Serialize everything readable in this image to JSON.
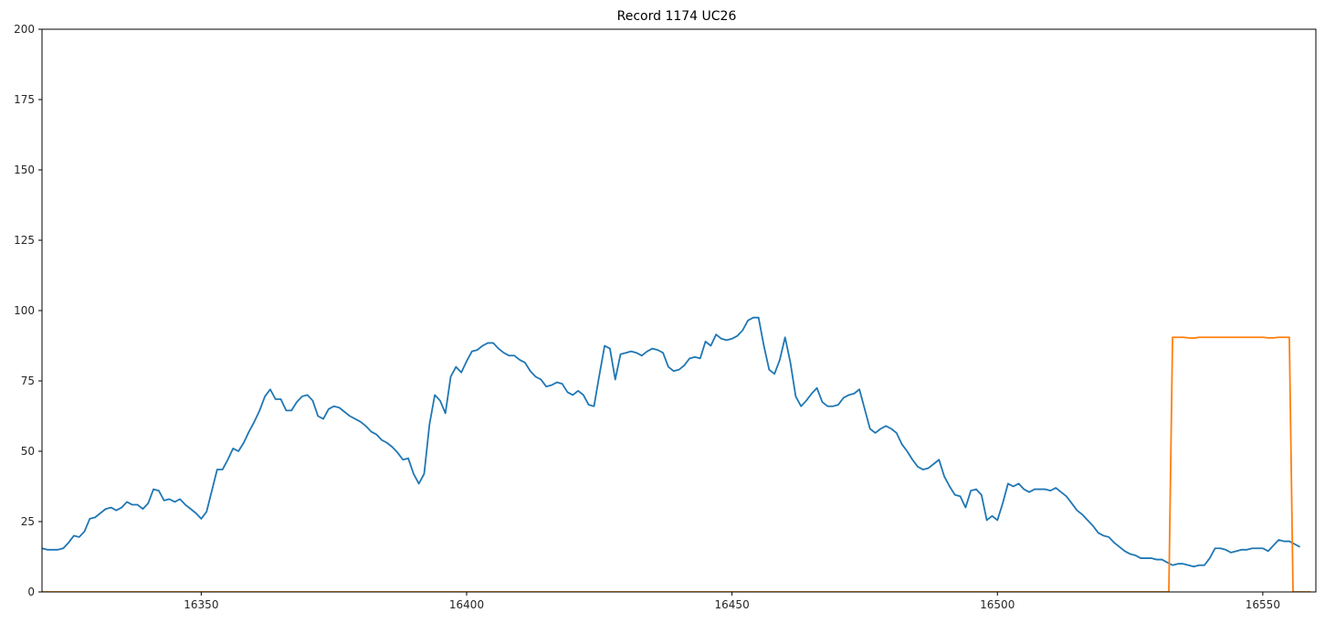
{
  "chart_data": {
    "type": "line",
    "title": "Record 1174 UC26",
    "xlabel": "",
    "ylabel": "",
    "xlim": [
      16320,
      16560
    ],
    "ylim": [
      0,
      200
    ],
    "x_ticks": [
      16350,
      16400,
      16450,
      16500,
      16550
    ],
    "y_ticks": [
      0,
      25,
      50,
      75,
      100,
      125,
      150,
      175,
      200
    ],
    "grid": false,
    "legend": "none",
    "x_start": 16320,
    "series": [
      {
        "color": "#1f77b4",
        "values": [
          15.5,
          15,
          15,
          15,
          15.5,
          17.5,
          20,
          19.5,
          21.5,
          26,
          26.5,
          28,
          29.5,
          30,
          29,
          30,
          32,
          31,
          31,
          29.5,
          31.5,
          36.5,
          36,
          32.5,
          33,
          32,
          33,
          31,
          29.5,
          28,
          26,
          28.5,
          36,
          43.5,
          43.5,
          47,
          51,
          50,
          53,
          57,
          60.5,
          64.5,
          69.5,
          72,
          68.5,
          68.5,
          64.5,
          64.5,
          67.5,
          69.5,
          70,
          68,
          62.5,
          61.5,
          65,
          66,
          65.5,
          64,
          62.5,
          61.5,
          60.5,
          59,
          57,
          56,
          54,
          53,
          51.5,
          49.5,
          47,
          47.5,
          42,
          38.5,
          42,
          59.5,
          70,
          68,
          63.5,
          76.5,
          80,
          78,
          82,
          85.5,
          86,
          87.5,
          88.5,
          88.5,
          86.5,
          85,
          84,
          84,
          82.5,
          81.5,
          78.5,
          76.5,
          75.5,
          73,
          73.5,
          74.5,
          74,
          71,
          70,
          71.5,
          70,
          66.5,
          66,
          77,
          87.5,
          86.5,
          75.5,
          84.5,
          85,
          85.5,
          85,
          84,
          85.5,
          86.5,
          86,
          85,
          80,
          78.5,
          79,
          80.5,
          83,
          83.5,
          83,
          89,
          87.5,
          91.5,
          90,
          89.5,
          90,
          91,
          93,
          96.5,
          97.5,
          97.5,
          87.5,
          79,
          77.5,
          82.5,
          90.5,
          81.5,
          69.5,
          66,
          68,
          70.5,
          72.5,
          67.5,
          66,
          66,
          66.5,
          69,
          70,
          70.5,
          72,
          65,
          58,
          56.5,
          58,
          59,
          58,
          56.5,
          52.5,
          50,
          47,
          44.5,
          43.5,
          44,
          45.5,
          47,
          41,
          37.5,
          34.5,
          34,
          30,
          36,
          36.5,
          34.5,
          25.5,
          27,
          25.5,
          31.5,
          38.5,
          37.5,
          38.5,
          36.5,
          35.5,
          36.5,
          36.5,
          36.5,
          36,
          37,
          35.5,
          34,
          31.5,
          29,
          27.5,
          25.5,
          23.5,
          21,
          20,
          19.5,
          17.5,
          16,
          14.5,
          13.5,
          13,
          12,
          12,
          12,
          11.5,
          11.5,
          10.5,
          9.5,
          10,
          10,
          9.5,
          9,
          9.5,
          9.5,
          12,
          15.5,
          15.5,
          15,
          14,
          14.5,
          15,
          15,
          15.5,
          15.5,
          15.5,
          14.5,
          16.5,
          18.5,
          18,
          18,
          17,
          16
        ]
      },
      {
        "color": "#ff7f0e",
        "segments": [
          {
            "x": [
              16320,
              16532.3
            ],
            "y": [
              0,
              0
            ]
          },
          {
            "x": [
              16532.3,
              16533,
              16534,
              16535,
              16536,
              16537,
              16538,
              16539,
              16540,
              16541,
              16542,
              16543,
              16544,
              16545,
              16546,
              16547,
              16548,
              16549,
              16550,
              16551,
              16552,
              16553,
              16554,
              16555,
              16555.7,
              16559
            ],
            "y": [
              0,
              90.5,
              90.5,
              90.5,
              90.3,
              90.2,
              90.5,
              90.5,
              90.5,
              90.5,
              90.5,
              90.5,
              90.5,
              90.5,
              90.5,
              90.5,
              90.5,
              90.5,
              90.5,
              90.3,
              90.3,
              90.5,
              90.5,
              90.5,
              0,
              0
            ]
          }
        ]
      }
    ]
  }
}
